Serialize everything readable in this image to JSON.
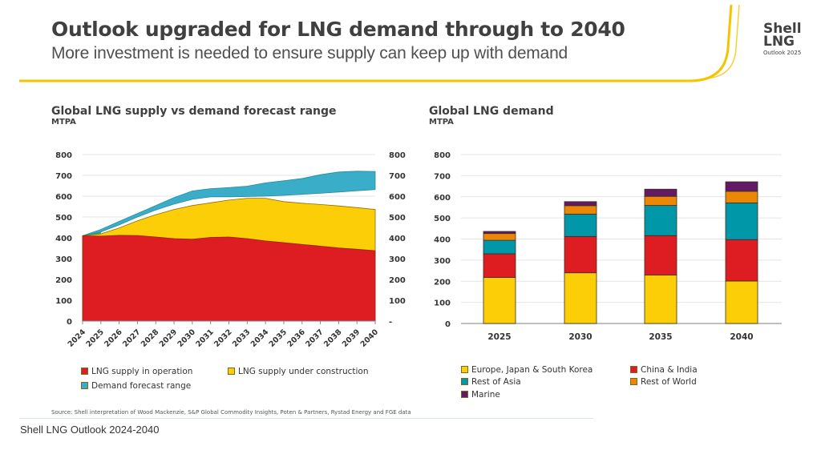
{
  "header": {
    "title": "Outlook upgraded for LNG demand through to 2040",
    "subtitle": "More investment is needed to ensure supply can keep up with demand",
    "brand_line1": "Shell",
    "brand_line2": "LNG",
    "brand_line3": "Outlook 2025",
    "accent_color": "#f5c400"
  },
  "source_note": "Source: Shell interpretation of Wood Mackenzie, S&P Global Commodity Insights, Poten & Partners, Rystad Energy and FGE data",
  "caption": "Shell LNG Outlook 2024-2040",
  "chart_data": [
    {
      "type": "area",
      "title": "Global LNG supply vs demand forecast range",
      "ylabel": "MTPA",
      "xlabel": "",
      "ylim": [
        0,
        800
      ],
      "yticks": [
        0,
        100,
        200,
        300,
        400,
        500,
        600,
        700,
        800
      ],
      "ytick_labels_left": [
        "0",
        "100",
        "200",
        "300",
        "400",
        "500",
        "600",
        "700",
        "800"
      ],
      "ytick_labels_right": [
        "-",
        "100",
        "200",
        "300",
        "400",
        "500",
        "600",
        "700",
        "800"
      ],
      "grid": true,
      "legend_position": "bottom",
      "x": [
        "2024",
        "2025",
        "2026",
        "2027",
        "2028",
        "2029",
        "2030",
        "2031",
        "2032",
        "2033",
        "2034",
        "2035",
        "2036",
        "2037",
        "2038",
        "2039",
        "2040"
      ],
      "series": [
        {
          "name": "LNG supply in operation",
          "color": "#dd1d21",
          "values": [
            410,
            408,
            412,
            411,
            404,
            396,
            393,
            402,
            404,
            396,
            385,
            377,
            368,
            360,
            351,
            345,
            338
          ]
        },
        {
          "name": "LNG supply under construction",
          "color": "#fbce07",
          "note": "stacked total (operation + construction)",
          "values": [
            410,
            419,
            447,
            482,
            511,
            536,
            555,
            568,
            581,
            590,
            590,
            574,
            566,
            560,
            553,
            545,
            536
          ]
        },
        {
          "name": "Demand forecast range",
          "color": "#3aaec8",
          "low": [
            410,
            428,
            462,
            500,
            534,
            562,
            585,
            597,
            597,
            598,
            600,
            604,
            609,
            614,
            620,
            626,
            632
          ],
          "high": [
            410,
            440,
            479,
            517,
            555,
            593,
            625,
            636,
            641,
            648,
            664,
            674,
            685,
            703,
            716,
            720,
            719
          ]
        }
      ],
      "overlap_color": "#2e9e96"
    },
    {
      "type": "bar",
      "stacked": true,
      "title": "Global LNG demand",
      "ylabel": "MTPA",
      "xlabel": "",
      "ylim": [
        0,
        800
      ],
      "yticks": [
        0,
        100,
        200,
        300,
        400,
        500,
        600,
        700,
        800
      ],
      "grid": true,
      "legend_position": "bottom",
      "categories": [
        "2025",
        "2030",
        "2035",
        "2040"
      ],
      "series": [
        {
          "name": "Europe, Japan & South Korea",
          "color": "#fbce07",
          "values": [
            218,
            240,
            229,
            201
          ]
        },
        {
          "name": "China & India",
          "color": "#dd1d21",
          "values": [
            112,
            172,
            187,
            196
          ]
        },
        {
          "name": "Rest of Asia",
          "color": "#0097a9",
          "values": [
            64,
            106,
            143,
            174
          ]
        },
        {
          "name": "Rest of World",
          "color": "#eb8705",
          "values": [
            32,
            40,
            43,
            55
          ]
        },
        {
          "name": "Marine",
          "color": "#641964",
          "values": [
            10,
            19,
            34,
            45
          ]
        }
      ]
    }
  ]
}
